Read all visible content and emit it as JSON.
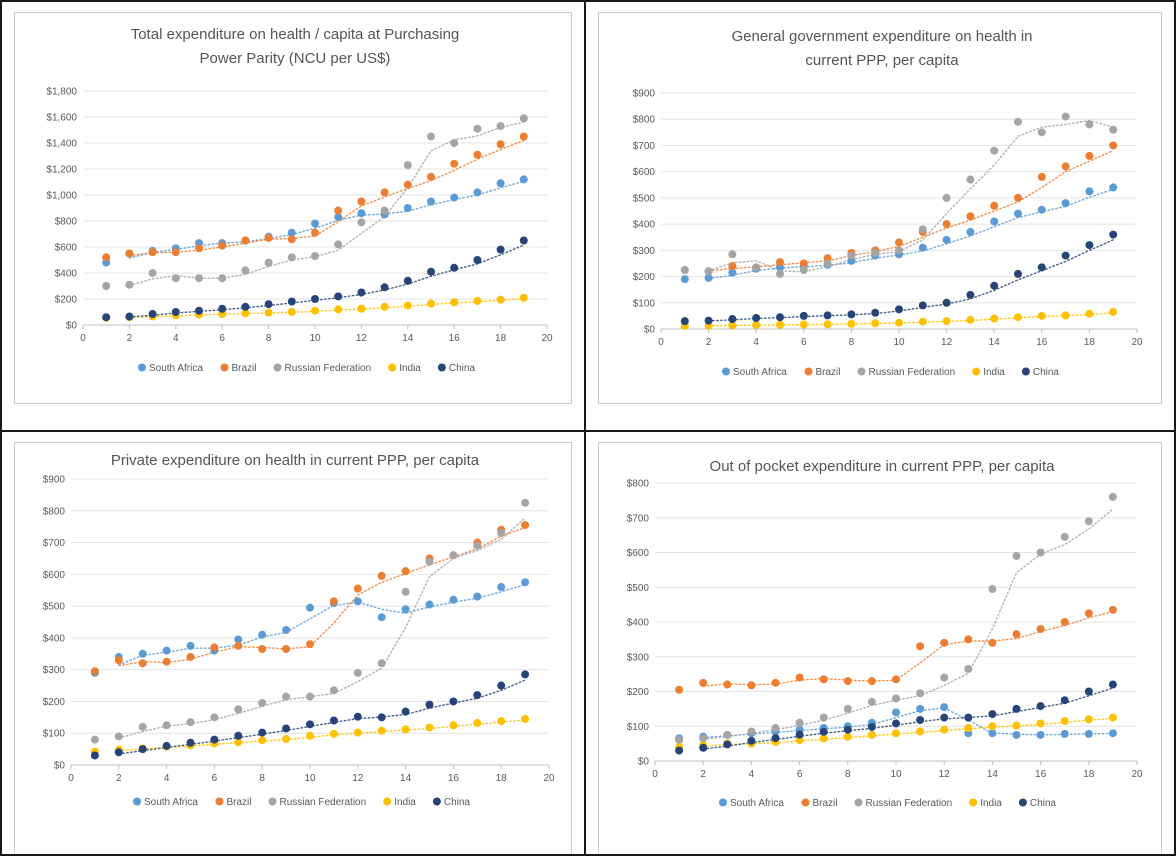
{
  "colors": {
    "South Africa": "#5b9bd5",
    "Brazil": "#ed7d31",
    "Russian Federation": "#a5a5a5",
    "India": "#ffc000",
    "China": "#264478"
  },
  "chart_data": [
    {
      "type": "scatter",
      "title": [
        "Total expenditure on health / capita at Purchasing",
        "Power Parity (NCU per US$)"
      ],
      "xlabel": "",
      "ylabel": "",
      "xlim": [
        0,
        20
      ],
      "ylim": [
        0,
        1800
      ],
      "x_ticks": [
        0,
        2,
        4,
        6,
        8,
        10,
        12,
        14,
        16,
        18,
        20
      ],
      "x_tick_labels": [
        "0",
        "2",
        "4",
        "6",
        "8",
        "10",
        "12",
        "14",
        "16",
        "18",
        "20"
      ],
      "y_ticks": [
        0,
        200,
        400,
        600,
        800,
        1000,
        1200,
        1400,
        1600,
        1800
      ],
      "y_tick_labels": [
        "$0",
        "$200",
        "$400",
        "$600",
        "$800",
        "$1,000",
        "$1,200",
        "$1,400",
        "$1,600",
        "$1,800"
      ],
      "trendlines": "dotted moving-average per series",
      "legend": "bottom",
      "series": [
        {
          "name": "South Africa",
          "x": [
            1,
            2,
            3,
            4,
            5,
            6,
            7,
            8,
            9,
            10,
            11,
            12,
            13,
            14,
            15,
            16,
            17,
            18,
            19
          ],
          "values": [
            480,
            550,
            570,
            590,
            630,
            630,
            650,
            680,
            710,
            780,
            830,
            860,
            850,
            900,
            950,
            980,
            1020,
            1090,
            1120
          ]
        },
        {
          "name": "Brazil",
          "x": [
            1,
            2,
            3,
            4,
            5,
            6,
            7,
            8,
            9,
            10,
            11,
            12,
            13,
            14,
            15,
            16,
            17,
            18,
            19
          ],
          "values": [
            520,
            550,
            560,
            560,
            590,
            610,
            650,
            670,
            660,
            710,
            880,
            950,
            1020,
            1080,
            1140,
            1240,
            1310,
            1390,
            1450
          ]
        },
        {
          "name": "Russian Federation",
          "x": [
            1,
            2,
            3,
            4,
            5,
            6,
            7,
            8,
            9,
            10,
            11,
            12,
            13,
            14,
            15,
            16,
            17,
            18,
            19
          ],
          "values": [
            300,
            310,
            400,
            360,
            360,
            360,
            420,
            480,
            520,
            530,
            620,
            790,
            880,
            1230,
            1450,
            1400,
            1510,
            1530,
            1590
          ]
        },
        {
          "name": "India",
          "x": [
            1,
            2,
            3,
            4,
            5,
            6,
            7,
            8,
            9,
            10,
            11,
            12,
            13,
            14,
            15,
            16,
            17,
            18,
            19
          ],
          "values": [
            55,
            60,
            65,
            75,
            80,
            85,
            90,
            95,
            100,
            110,
            120,
            125,
            140,
            150,
            165,
            175,
            185,
            195,
            210
          ]
        },
        {
          "name": "China",
          "x": [
            1,
            2,
            3,
            4,
            5,
            6,
            7,
            8,
            9,
            10,
            11,
            12,
            13,
            14,
            15,
            16,
            17,
            18,
            19
          ],
          "values": [
            60,
            65,
            85,
            100,
            110,
            125,
            140,
            160,
            180,
            200,
            220,
            250,
            290,
            340,
            410,
            440,
            500,
            580,
            650
          ]
        }
      ]
    },
    {
      "type": "scatter",
      "title": [
        "General government expenditure on health in",
        "current PPP, per capita"
      ],
      "xlabel": "",
      "ylabel": "",
      "xlim": [
        0,
        20
      ],
      "ylim": [
        0,
        900
      ],
      "x_ticks": [
        0,
        2,
        4,
        6,
        8,
        10,
        12,
        14,
        16,
        18,
        20
      ],
      "x_tick_labels": [
        "0",
        "2",
        "4",
        "6",
        "8",
        "10",
        "12",
        "14",
        "16",
        "18",
        "20"
      ],
      "y_ticks": [
        0,
        100,
        200,
        300,
        400,
        500,
        600,
        700,
        800,
        900
      ],
      "y_tick_labels": [
        "$0",
        "$100",
        "$200",
        "$300",
        "$400",
        "$500",
        "$600",
        "$700",
        "$800",
        "$900"
      ],
      "trendlines": "dotted moving-average per series",
      "legend": "bottom",
      "series": [
        {
          "name": "South Africa",
          "x": [
            1,
            2,
            3,
            4,
            5,
            6,
            7,
            8,
            9,
            10,
            11,
            12,
            13,
            14,
            15,
            16,
            17,
            18,
            19
          ],
          "values": [
            190,
            195,
            215,
            230,
            235,
            240,
            245,
            260,
            280,
            285,
            310,
            340,
            370,
            410,
            440,
            455,
            480,
            525,
            540
          ]
        },
        {
          "name": "Brazil",
          "x": [
            1,
            2,
            3,
            4,
            5,
            6,
            7,
            8,
            9,
            10,
            11,
            12,
            13,
            14,
            15,
            16,
            17,
            18,
            19
          ],
          "values": [
            225,
            220,
            240,
            235,
            255,
            250,
            270,
            290,
            300,
            330,
            370,
            400,
            430,
            470,
            500,
            580,
            620,
            660,
            700
          ]
        },
        {
          "name": "Russian Federation",
          "x": [
            1,
            2,
            3,
            4,
            5,
            6,
            7,
            8,
            9,
            10,
            11,
            12,
            13,
            14,
            15,
            16,
            17,
            18,
            19
          ],
          "values": [
            225,
            220,
            285,
            235,
            210,
            225,
            250,
            280,
            290,
            300,
            380,
            500,
            570,
            680,
            790,
            750,
            810,
            780,
            760
          ]
        },
        {
          "name": "India",
          "x": [
            1,
            2,
            3,
            4,
            5,
            6,
            7,
            8,
            9,
            10,
            11,
            12,
            13,
            14,
            15,
            16,
            17,
            18,
            19
          ],
          "values": [
            12,
            13,
            14,
            15,
            16,
            17,
            18,
            20,
            22,
            24,
            28,
            30,
            35,
            40,
            45,
            50,
            52,
            58,
            65
          ]
        },
        {
          "name": "China",
          "x": [
            1,
            2,
            3,
            4,
            5,
            6,
            7,
            8,
            9,
            10,
            11,
            12,
            13,
            14,
            15,
            16,
            17,
            18,
            19
          ],
          "values": [
            30,
            32,
            38,
            42,
            45,
            50,
            52,
            56,
            62,
            75,
            90,
            100,
            130,
            165,
            210,
            235,
            280,
            320,
            360
          ]
        }
      ]
    },
    {
      "type": "scatter",
      "title": [
        "Private expenditure on health in current PPP, per capita"
      ],
      "xlabel": "",
      "ylabel": "",
      "xlim": [
        0,
        20
      ],
      "ylim": [
        0,
        900
      ],
      "x_ticks": [
        0,
        2,
        4,
        6,
        8,
        10,
        12,
        14,
        16,
        18,
        20
      ],
      "x_tick_labels": [
        "0",
        "2",
        "4",
        "6",
        "8",
        "10",
        "12",
        "14",
        "16",
        "18",
        "20"
      ],
      "y_ticks": [
        0,
        100,
        200,
        300,
        400,
        500,
        600,
        700,
        800,
        900
      ],
      "y_tick_labels": [
        "$0",
        "$100",
        "$200",
        "$300",
        "$400",
        "$500",
        "$600",
        "$700",
        "$800",
        "$900"
      ],
      "trendlines": "dotted moving-average per series",
      "legend": "bottom",
      "series": [
        {
          "name": "South Africa",
          "x": [
            1,
            2,
            3,
            4,
            5,
            6,
            7,
            8,
            9,
            10,
            11,
            12,
            13,
            14,
            15,
            16,
            17,
            18,
            19
          ],
          "values": [
            290,
            340,
            350,
            360,
            375,
            360,
            395,
            410,
            425,
            495,
            510,
            515,
            465,
            490,
            505,
            520,
            530,
            560,
            575
          ]
        },
        {
          "name": "Brazil",
          "x": [
            1,
            2,
            3,
            4,
            5,
            6,
            7,
            8,
            9,
            10,
            11,
            12,
            13,
            14,
            15,
            16,
            17,
            18,
            19
          ],
          "values": [
            295,
            330,
            320,
            325,
            340,
            370,
            375,
            365,
            365,
            380,
            515,
            555,
            595,
            610,
            650,
            660,
            700,
            740,
            755
          ]
        },
        {
          "name": "Russian Federation",
          "x": [
            1,
            2,
            3,
            4,
            5,
            6,
            7,
            8,
            9,
            10,
            11,
            12,
            13,
            14,
            15,
            16,
            17,
            18,
            19
          ],
          "values": [
            80,
            90,
            120,
            125,
            135,
            150,
            175,
            195,
            215,
            215,
            235,
            290,
            320,
            545,
            640,
            660,
            690,
            730,
            825
          ]
        },
        {
          "name": "India",
          "x": [
            1,
            2,
            3,
            4,
            5,
            6,
            7,
            8,
            9,
            10,
            11,
            12,
            13,
            14,
            15,
            16,
            17,
            18,
            19
          ],
          "values": [
            42,
            48,
            52,
            58,
            62,
            68,
            72,
            78,
            82,
            92,
            98,
            102,
            108,
            112,
            118,
            125,
            132,
            138,
            145
          ]
        },
        {
          "name": "China",
          "x": [
            1,
            2,
            3,
            4,
            5,
            6,
            7,
            8,
            9,
            10,
            11,
            12,
            13,
            14,
            15,
            16,
            17,
            18,
            19
          ],
          "values": [
            30,
            40,
            50,
            60,
            70,
            80,
            92,
            102,
            115,
            128,
            140,
            152,
            150,
            168,
            190,
            200,
            220,
            250,
            285
          ]
        }
      ]
    },
    {
      "type": "scatter",
      "title": [
        "Out of pocket expenditure in current PPP, per capita"
      ],
      "xlabel": "",
      "ylabel": "",
      "xlim": [
        0,
        20
      ],
      "ylim": [
        0,
        800
      ],
      "x_ticks": [
        0,
        2,
        4,
        6,
        8,
        10,
        12,
        14,
        16,
        18,
        20
      ],
      "x_tick_labels": [
        "0",
        "2",
        "4",
        "6",
        "8",
        "10",
        "12",
        "14",
        "16",
        "18",
        "20"
      ],
      "y_ticks": [
        0,
        100,
        200,
        300,
        400,
        500,
        600,
        700,
        800
      ],
      "y_tick_labels": [
        "$0",
        "$100",
        "$200",
        "$300",
        "$400",
        "$500",
        "$600",
        "$700",
        "$800"
      ],
      "trendlines": "dotted moving-average per series",
      "legend": "bottom",
      "series": [
        {
          "name": "South Africa",
          "x": [
            1,
            2,
            3,
            4,
            5,
            6,
            7,
            8,
            9,
            10,
            11,
            12,
            13,
            14,
            15,
            16,
            17,
            18,
            19
          ],
          "values": [
            65,
            70,
            75,
            80,
            85,
            90,
            95,
            100,
            110,
            140,
            150,
            155,
            80,
            80,
            75,
            75,
            78,
            78,
            80
          ]
        },
        {
          "name": "Brazil",
          "x": [
            1,
            2,
            3,
            4,
            5,
            6,
            7,
            8,
            9,
            10,
            11,
            12,
            13,
            14,
            15,
            16,
            17,
            18,
            19
          ],
          "values": [
            205,
            225,
            220,
            218,
            225,
            240,
            235,
            230,
            230,
            235,
            330,
            340,
            350,
            340,
            365,
            380,
            400,
            425,
            435
          ]
        },
        {
          "name": "Russian Federation",
          "x": [
            1,
            2,
            3,
            4,
            5,
            6,
            7,
            8,
            9,
            10,
            11,
            12,
            13,
            14,
            15,
            16,
            17,
            18,
            19
          ],
          "values": [
            60,
            65,
            75,
            85,
            95,
            110,
            125,
            150,
            170,
            180,
            195,
            240,
            265,
            495,
            590,
            600,
            645,
            690,
            760
          ]
        },
        {
          "name": "India",
          "x": [
            1,
            2,
            3,
            4,
            5,
            6,
            7,
            8,
            9,
            10,
            11,
            12,
            13,
            14,
            15,
            16,
            17,
            18,
            19
          ],
          "values": [
            40,
            45,
            50,
            50,
            55,
            60,
            65,
            70,
            75,
            80,
            85,
            90,
            95,
            100,
            102,
            108,
            115,
            120,
            125
          ]
        },
        {
          "name": "China",
          "x": [
            1,
            2,
            3,
            4,
            5,
            6,
            7,
            8,
            9,
            10,
            11,
            12,
            13,
            14,
            15,
            16,
            17,
            18,
            19
          ],
          "values": [
            30,
            38,
            48,
            58,
            66,
            76,
            84,
            90,
            98,
            108,
            118,
            125,
            125,
            135,
            150,
            158,
            175,
            200,
            220
          ]
        }
      ]
    }
  ]
}
